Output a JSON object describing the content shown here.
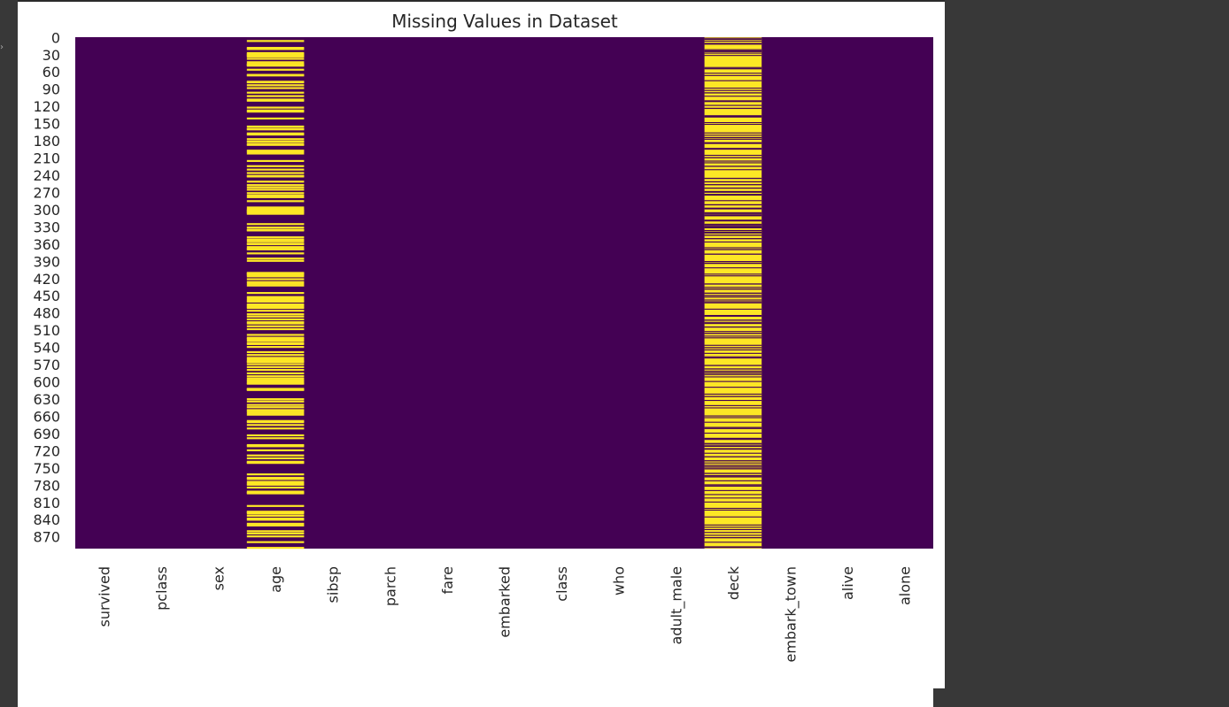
{
  "chart_data": {
    "type": "heatmap",
    "title": "Missing Values in Dataset",
    "xlabel": "",
    "ylabel": "",
    "row_count": 891,
    "ytick_labels": [
      "0",
      "30",
      "60",
      "90",
      "120",
      "150",
      "180",
      "210",
      "240",
      "270",
      "300",
      "330",
      "360",
      "390",
      "420",
      "450",
      "480",
      "510",
      "540",
      "570",
      "600",
      "630",
      "660",
      "690",
      "720",
      "750",
      "780",
      "810",
      "840",
      "870"
    ],
    "columns": [
      "survived",
      "pclass",
      "sex",
      "age",
      "sibsp",
      "parch",
      "fare",
      "embarked",
      "class",
      "who",
      "adult_male",
      "deck",
      "embark_town",
      "alive",
      "alone"
    ],
    "colors": {
      "present": "#440154",
      "missing": "#fde725"
    },
    "colorbar": false,
    "missing": {
      "age": [
        5,
        17,
        19,
        26,
        28,
        29,
        31,
        32,
        36,
        42,
        45,
        46,
        47,
        48,
        55,
        64,
        65,
        76,
        77,
        82,
        87,
        95,
        101,
        107,
        109,
        121,
        126,
        128,
        140,
        154,
        158,
        159,
        166,
        168,
        176,
        180,
        181,
        185,
        186,
        196,
        198,
        201,
        214,
        223,
        229,
        235,
        240,
        241,
        250,
        256,
        260,
        264,
        270,
        274,
        277,
        284,
        295,
        298,
        300,
        301,
        303,
        304,
        306,
        324,
        330,
        334,
        335,
        347,
        351,
        354,
        358,
        359,
        364,
        367,
        368,
        375,
        384,
        388,
        409,
        410,
        411,
        413,
        415,
        420,
        425,
        428,
        431,
        444,
        451,
        454,
        457,
        459,
        464,
        466,
        468,
        470,
        475,
        481,
        485,
        490,
        495,
        497,
        502,
        507,
        517,
        522,
        524,
        527,
        531,
        533,
        538,
        547,
        552,
        557,
        560,
        563,
        564,
        568,
        573,
        578,
        584,
        589,
        593,
        596,
        598,
        601,
        602,
        611,
        612,
        613,
        629,
        633,
        639,
        643,
        648,
        650,
        653,
        656,
        667,
        669,
        674,
        680,
        692,
        697,
        709,
        711,
        718,
        727,
        732,
        738,
        739,
        740,
        760,
        766,
        768,
        773,
        776,
        778,
        783,
        790,
        792,
        793,
        815,
        825,
        826,
        828,
        832,
        837,
        839,
        846,
        849,
        859,
        863,
        868,
        878,
        888
      ]
    },
    "present_runs": {
      "deck": [
        [
          1,
          1
        ],
        [
          3,
          3
        ],
        [
          6,
          6
        ],
        [
          10,
          12
        ],
        [
          21,
          21
        ],
        [
          23,
          25
        ],
        [
          27,
          27
        ],
        [
          31,
          31
        ],
        [
          52,
          52
        ],
        [
          54,
          55
        ],
        [
          62,
          62
        ],
        [
          66,
          66
        ],
        [
          75,
          75
        ],
        [
          88,
          88
        ],
        [
          92,
          92
        ],
        [
          96,
          97
        ],
        [
          102,
          102
        ],
        [
          110,
          112
        ],
        [
          118,
          118
        ],
        [
          123,
          124
        ],
        [
          136,
          139
        ],
        [
          148,
          148
        ],
        [
          151,
          151
        ],
        [
          166,
          166
        ],
        [
          170,
          170
        ],
        [
          174,
          175
        ],
        [
          177,
          177
        ],
        [
          183,
          185
        ],
        [
          193,
          195
        ],
        [
          205,
          205
        ],
        [
          209,
          210
        ],
        [
          215,
          215
        ],
        [
          218,
          218
        ],
        [
          224,
          225
        ],
        [
          230,
          230
        ],
        [
          245,
          246
        ],
        [
          251,
          252
        ],
        [
          256,
          257
        ],
        [
          262,
          263
        ],
        [
          268,
          270
        ],
        [
          273,
          275
        ],
        [
          284,
          284
        ],
        [
          291,
          292
        ],
        [
          297,
          299
        ],
        [
          305,
          305
        ],
        [
          307,
          307
        ],
        [
          309,
          311
        ],
        [
          318,
          320
        ],
        [
          325,
          325
        ],
        [
          327,
          327
        ],
        [
          329,
          332
        ],
        [
          336,
          337
        ],
        [
          339,
          341
        ],
        [
          344,
          345
        ],
        [
          350,
          351
        ],
        [
          356,
          356
        ],
        [
          366,
          366
        ],
        [
          369,
          370
        ],
        [
          377,
          378
        ],
        [
          390,
          391
        ],
        [
          393,
          394
        ],
        [
          401,
          401
        ],
        [
          412,
          412
        ],
        [
          415,
          415
        ],
        [
          429,
          430
        ],
        [
          435,
          435
        ],
        [
          438,
          439
        ],
        [
          445,
          446
        ],
        [
          449,
          450
        ],
        [
          452,
          452
        ],
        [
          457,
          457
        ],
        [
          460,
          460
        ],
        [
          462,
          462
        ],
        [
          473,
          473
        ],
        [
          484,
          486
        ],
        [
          492,
          493
        ],
        [
          496,
          496
        ],
        [
          498,
          498
        ],
        [
          504,
          505
        ],
        [
          512,
          512
        ],
        [
          515,
          516
        ],
        [
          520,
          520
        ],
        [
          523,
          523
        ],
        [
          536,
          536
        ],
        [
          540,
          541
        ],
        [
          544,
          544
        ],
        [
          550,
          550
        ],
        [
          556,
          556
        ],
        [
          558,
          558
        ],
        [
          571,
          572
        ],
        [
          577,
          578
        ],
        [
          581,
          582
        ],
        [
          584,
          585
        ],
        [
          587,
          587
        ],
        [
          591,
          591
        ],
        [
          599,
          599
        ],
        [
          609,
          609
        ],
        [
          621,
          621
        ],
        [
          625,
          626
        ],
        [
          632,
          632
        ],
        [
          641,
          641
        ],
        [
          645,
          645
        ],
        [
          659,
          659
        ],
        [
          662,
          662
        ],
        [
          670,
          670
        ],
        [
          679,
          680
        ],
        [
          681,
          681
        ],
        [
          689,
          689
        ],
        [
          698,
          699
        ],
        [
          700,
          700
        ],
        [
          707,
          708
        ],
        [
          710,
          710
        ],
        [
          712,
          712
        ],
        [
          716,
          716
        ],
        [
          717,
          717
        ],
        [
          724,
          724
        ],
        [
          730,
          731
        ],
        [
          737,
          738
        ],
        [
          741,
          741
        ],
        [
          745,
          746
        ],
        [
          748,
          749
        ],
        [
          751,
          752
        ],
        [
          759,
          760
        ],
        [
          763,
          764
        ],
        [
          765,
          766
        ],
        [
          772,
          772
        ],
        [
          779,
          779
        ],
        [
          781,
          782
        ],
        [
          789,
          789
        ],
        [
          796,
          796
        ],
        [
          802,
          802
        ],
        [
          809,
          809
        ],
        [
          820,
          820
        ],
        [
          823,
          823
        ],
        [
          835,
          835
        ],
        [
          849,
          849
        ],
        [
          853,
          853
        ],
        [
          857,
          857
        ],
        [
          862,
          862
        ],
        [
          867,
          867
        ],
        [
          871,
          872
        ],
        [
          879,
          879
        ],
        [
          887,
          889
        ]
      ]
    }
  }
}
